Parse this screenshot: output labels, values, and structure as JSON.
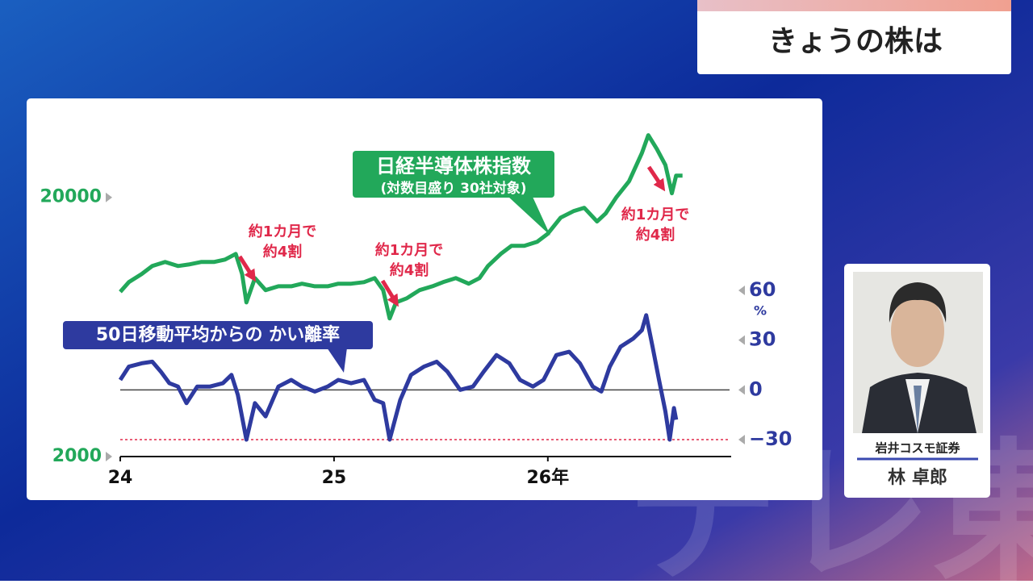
{
  "header": {
    "title": "きょうの株は"
  },
  "guest": {
    "company": "岩井コスモ証券",
    "name": "林 卓郎"
  },
  "chart_data": {
    "type": "line",
    "xlim": [
      24,
      26.85
    ],
    "xticks": [
      24,
      25,
      {
        "value": 26,
        "label": "26年"
      }
    ],
    "ylim": [
      2000,
      40000
    ],
    "y_scale": "log",
    "yticks": [
      2000,
      20000
    ],
    "y2lim": [
      -30,
      60
    ],
    "y2ticks": [
      {
        "value": -30,
        "label": "−30"
      },
      0,
      30,
      60
    ],
    "y2_unit": "%",
    "series": [
      {
        "name": "日経半導体株指数",
        "subtitle": "(対数目盛り 30社対象)",
        "color": "#22a85a",
        "x": [
          24.0,
          24.04,
          24.1,
          24.15,
          24.21,
          24.27,
          24.32,
          24.38,
          24.44,
          24.49,
          24.54,
          24.57,
          24.59,
          24.63,
          24.68,
          24.74,
          24.8,
          24.85,
          24.91,
          24.97,
          25.02,
          25.08,
          25.14,
          25.19,
          25.23,
          25.26,
          25.29,
          25.34,
          25.4,
          25.46,
          25.51,
          25.57,
          25.63,
          25.68,
          25.72,
          25.78,
          25.83,
          25.89,
          25.95,
          26.0,
          26.06,
          26.12,
          26.17,
          26.23,
          26.27,
          26.32,
          26.38,
          26.44,
          26.47,
          26.51,
          26.55,
          26.58,
          26.6,
          26.63
        ],
        "values": [
          8640,
          9420,
          10120,
          10870,
          11270,
          10870,
          11020,
          11270,
          11270,
          11510,
          12100,
          10120,
          7870,
          9760,
          8770,
          9080,
          9080,
          9290,
          9080,
          9080,
          9290,
          9290,
          9420,
          9760,
          8770,
          6820,
          7870,
          8160,
          8770,
          9080,
          9420,
          9760,
          9290,
          9760,
          10870,
          12100,
          13000,
          13000,
          13490,
          14490,
          16710,
          17700,
          18230,
          16140,
          17330,
          20000,
          23080,
          29660,
          34760,
          30760,
          26660,
          20740,
          24270,
          24270
        ]
      },
      {
        "name": "50日移動平均からの かい離率",
        "color": "#2e3a9f",
        "axis": "y2",
        "x": [
          24.0,
          24.04,
          24.1,
          24.15,
          24.19,
          24.23,
          24.27,
          24.31,
          24.36,
          24.42,
          24.48,
          24.52,
          24.55,
          24.59,
          24.63,
          24.68,
          24.74,
          24.8,
          24.85,
          24.91,
          24.97,
          25.02,
          25.08,
          25.14,
          25.19,
          25.23,
          25.26,
          25.31,
          25.36,
          25.42,
          25.48,
          25.53,
          25.59,
          25.65,
          25.7,
          25.76,
          25.82,
          25.87,
          25.93,
          25.98,
          26.04,
          26.1,
          26.15,
          26.21,
          26.25,
          26.29,
          26.34,
          26.4,
          26.44,
          26.46,
          26.49,
          26.52,
          26.55,
          26.57,
          26.59,
          26.6
        ],
        "values": [
          6,
          14,
          16,
          17,
          11,
          4,
          2,
          -8,
          2,
          2,
          4,
          9,
          -3,
          -30,
          -8,
          -16,
          2,
          6,
          2,
          -1,
          2,
          6,
          4,
          6,
          -6,
          -8,
          -30,
          -6,
          9,
          14,
          17,
          11,
          0,
          2,
          11,
          21,
          16,
          6,
          2,
          6,
          21,
          23,
          16,
          2,
          -1,
          14,
          26,
          31,
          36,
          45,
          26,
          6,
          -13,
          -30,
          -11,
          -18
        ]
      }
    ],
    "annotations": [
      [
        "約1カ月で",
        "約4割"
      ],
      [
        "約1カ月で",
        "約4割"
      ],
      [
        "約1カ月で",
        "約4割"
      ]
    ]
  }
}
